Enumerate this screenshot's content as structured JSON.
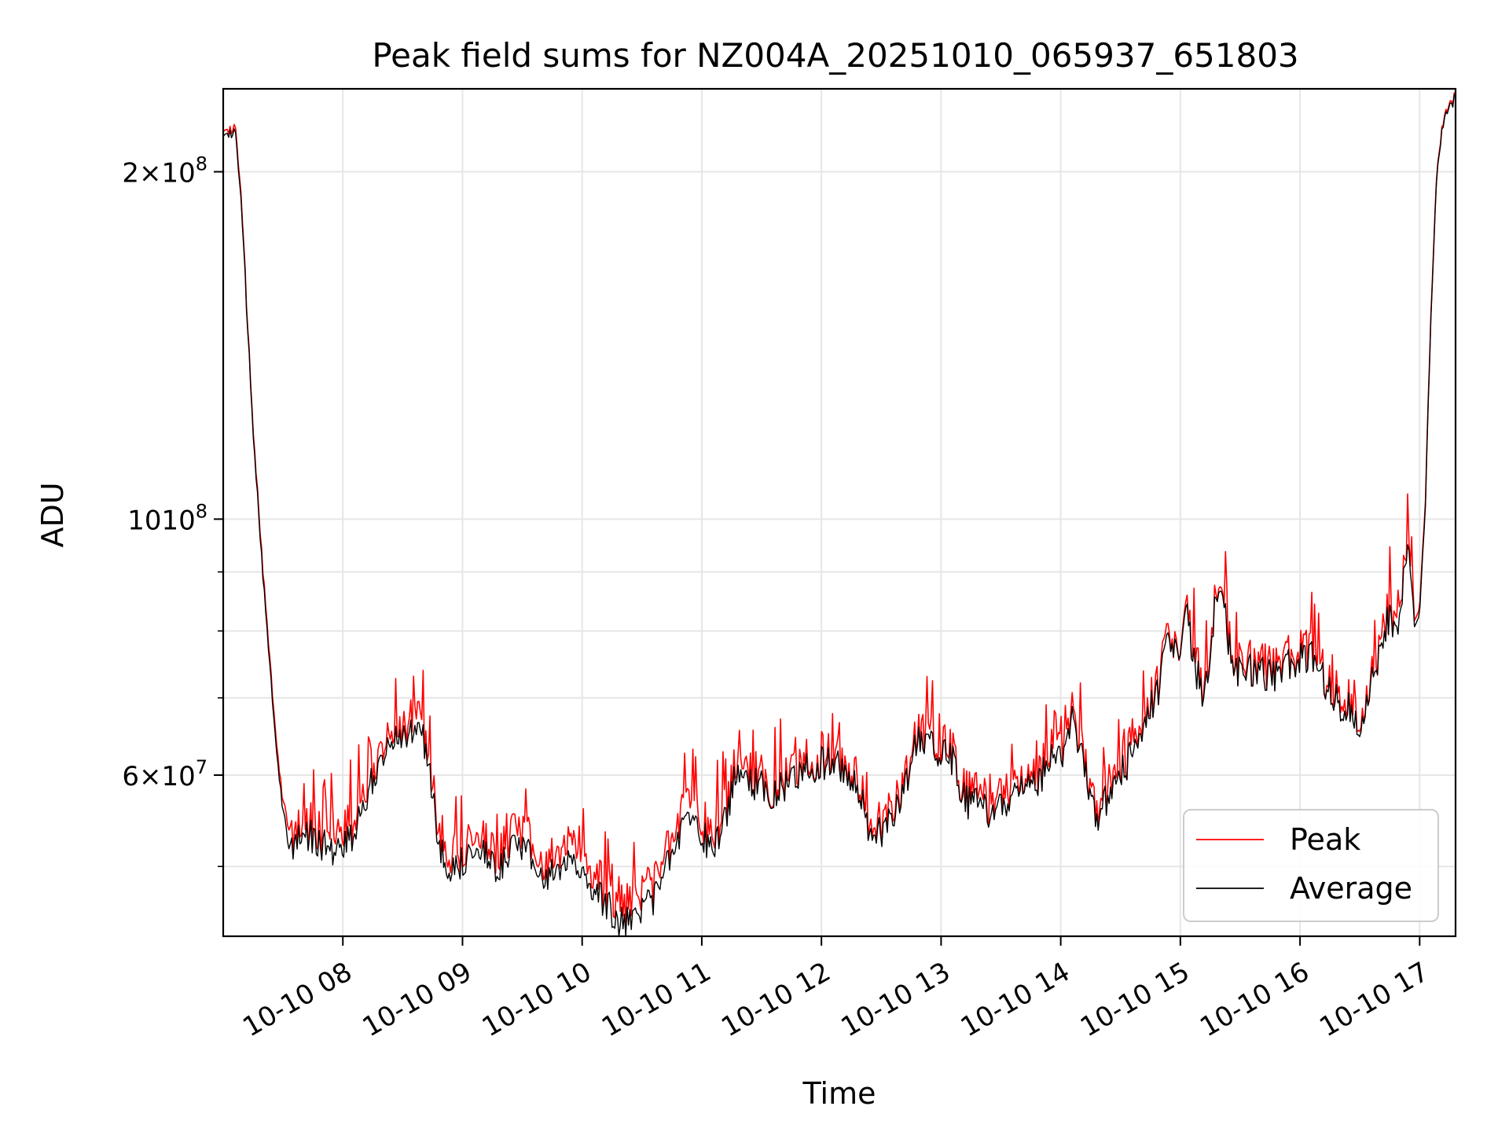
{
  "chart_data": {
    "type": "line",
    "title": "Peak field sums for NZ004A_20251010_065937_651803",
    "xlabel": "Time",
    "ylabel": "ADU",
    "yscale": "log",
    "ylim": [
      43500000,
      236000000
    ],
    "xlim_hours": [
      7.0,
      17.3
    ],
    "x_ticks": [
      {
        "value": 8,
        "label": "10-10 08"
      },
      {
        "value": 9,
        "label": "10-10 09"
      },
      {
        "value": 10,
        "label": "10-10 10"
      },
      {
        "value": 11,
        "label": "10-10 11"
      },
      {
        "value": 12,
        "label": "10-10 12"
      },
      {
        "value": 13,
        "label": "10-10 13"
      },
      {
        "value": 14,
        "label": "10-10 14"
      },
      {
        "value": 15,
        "label": "10-10 15"
      },
      {
        "value": 16,
        "label": "10-10 16"
      },
      {
        "value": 17,
        "label": "10-10 17"
      }
    ],
    "y_major_ticks": [
      {
        "value": 200000000,
        "mantissa": "2",
        "exp": "8",
        "times": true
      },
      {
        "value": 100000000,
        "mantissa": "10",
        "exp": "8",
        "times": false
      },
      {
        "value": 60000000,
        "mantissa": "6",
        "exp": "7",
        "times": true
      }
    ],
    "y_minor_ticks": [
      50000000,
      70000000,
      80000000,
      90000000
    ],
    "grid": true,
    "legend": {
      "position": "lower-right"
    },
    "series": [
      {
        "name": "Peak",
        "color": "#ff0000",
        "x": [
          7.0,
          7.05,
          7.1,
          7.15,
          7.2,
          7.25,
          7.3,
          7.35,
          7.4,
          7.45,
          7.5,
          7.55,
          7.6,
          7.7,
          7.8,
          7.9,
          8.0,
          8.1,
          8.2,
          8.3,
          8.4,
          8.5,
          8.6,
          8.7,
          8.8,
          8.85,
          8.9,
          9.0,
          9.1,
          9.2,
          9.3,
          9.4,
          9.5,
          9.6,
          9.7,
          9.8,
          9.9,
          10.0,
          10.1,
          10.2,
          10.3,
          10.4,
          10.5,
          10.6,
          10.7,
          10.8,
          10.9,
          11.0,
          11.1,
          11.2,
          11.3,
          11.4,
          11.5,
          11.6,
          11.7,
          11.8,
          11.9,
          12.0,
          12.1,
          12.2,
          12.3,
          12.4,
          12.5,
          12.6,
          12.7,
          12.8,
          12.9,
          13.0,
          13.1,
          13.2,
          13.3,
          13.4,
          13.5,
          13.6,
          13.7,
          13.8,
          13.9,
          14.0,
          14.1,
          14.2,
          14.3,
          14.4,
          14.5,
          14.6,
          14.7,
          14.8,
          14.9,
          15.0,
          15.05,
          15.1,
          15.2,
          15.25,
          15.3,
          15.35,
          15.4,
          15.5,
          15.6,
          15.7,
          15.8,
          15.9,
          16.0,
          16.1,
          16.2,
          16.3,
          16.35,
          16.4,
          16.5,
          16.6,
          16.65,
          16.7,
          16.75,
          16.8,
          16.85,
          16.9,
          16.95,
          17.0,
          17.05,
          17.1,
          17.15,
          17.2,
          17.25,
          17.3
        ],
        "values": [
          216000000,
          217000000,
          219000000,
          190000000,
          150000000,
          120000000,
          100000000,
          85000000,
          73000000,
          63000000,
          57000000,
          54000000,
          53500000,
          54500000,
          54000000,
          53500000,
          53000000,
          55000000,
          59000000,
          63000000,
          66000000,
          67000000,
          68500000,
          65000000,
          54000000,
          52000000,
          51500000,
          52000000,
          54500000,
          53000000,
          51000000,
          53000000,
          54500000,
          52000000,
          50500000,
          51000000,
          52500000,
          50000000,
          49000000,
          48000000,
          46500000,
          46000000,
          47000000,
          48500000,
          51500000,
          55500000,
          56500000,
          54500000,
          53500000,
          57000000,
          61500000,
          61000000,
          59500000,
          59000000,
          60000000,
          61000000,
          62000000,
          62500000,
          62500000,
          62000000,
          60000000,
          55000000,
          54500000,
          56000000,
          60000000,
          65500000,
          65000000,
          63500000,
          63000000,
          58000000,
          57500000,
          56500000,
          57000000,
          58500000,
          61000000,
          60000000,
          62500000,
          63000000,
          68000000,
          62000000,
          55500000,
          59000000,
          61500000,
          63500000,
          68500000,
          71000000,
          80000000,
          79000000,
          85500000,
          77000000,
          71000000,
          76500000,
          87500000,
          88500000,
          79000000,
          74000000,
          75000000,
          74500000,
          74000000,
          75500000,
          76500000,
          77500000,
          73500000,
          71000000,
          68000000,
          70000000,
          66500000,
          74000000,
          77000000,
          80500000,
          83500000,
          80000000,
          85000000,
          97000000,
          82000000,
          84000000,
          105000000,
          155000000,
          205000000,
          222000000,
          228000000,
          233000000
        ]
      },
      {
        "name": "Average",
        "color": "#000000",
        "x": [
          7.0,
          7.05,
          7.1,
          7.15,
          7.2,
          7.25,
          7.3,
          7.35,
          7.4,
          7.45,
          7.5,
          7.55,
          7.6,
          7.7,
          7.8,
          7.9,
          8.0,
          8.1,
          8.2,
          8.3,
          8.4,
          8.5,
          8.6,
          8.7,
          8.8,
          8.85,
          8.9,
          9.0,
          9.1,
          9.2,
          9.3,
          9.4,
          9.5,
          9.6,
          9.7,
          9.8,
          9.9,
          10.0,
          10.1,
          10.2,
          10.3,
          10.4,
          10.5,
          10.6,
          10.7,
          10.8,
          10.9,
          11.0,
          11.1,
          11.2,
          11.3,
          11.4,
          11.5,
          11.6,
          11.7,
          11.8,
          11.9,
          12.0,
          12.1,
          12.2,
          12.3,
          12.4,
          12.5,
          12.6,
          12.7,
          12.8,
          12.9,
          13.0,
          13.1,
          13.2,
          13.3,
          13.4,
          13.5,
          13.6,
          13.7,
          13.8,
          13.9,
          14.0,
          14.1,
          14.2,
          14.3,
          14.4,
          14.5,
          14.6,
          14.7,
          14.8,
          14.9,
          15.0,
          15.05,
          15.1,
          15.2,
          15.25,
          15.3,
          15.35,
          15.4,
          15.5,
          15.6,
          15.7,
          15.8,
          15.9,
          16.0,
          16.1,
          16.2,
          16.3,
          16.35,
          16.4,
          16.5,
          16.6,
          16.65,
          16.7,
          16.75,
          16.8,
          16.85,
          16.9,
          16.95,
          17.0,
          17.05,
          17.1,
          17.15,
          17.2,
          17.25,
          17.3
        ],
        "values": [
          214000000,
          215500000,
          217000000,
          188000000,
          149000000,
          119000000,
          99000000,
          84000000,
          72000000,
          62000000,
          56000000,
          52000000,
          52500000,
          53500000,
          52500000,
          52000000,
          51500000,
          53500000,
          57500000,
          61500000,
          64500000,
          65500000,
          66000000,
          63500000,
          52500000,
          50000000,
          50000000,
          50500000,
          52500000,
          51500000,
          49500000,
          51500000,
          52500000,
          50500000,
          49000000,
          49500000,
          50500000,
          48500000,
          47500000,
          46500000,
          45000000,
          44500000,
          45500000,
          47000000,
          50000000,
          53500000,
          54500000,
          53000000,
          52000000,
          55500000,
          60500000,
          59500000,
          58500000,
          58000000,
          59000000,
          60000000,
          61000000,
          61500000,
          61500000,
          61000000,
          59000000,
          54000000,
          53500000,
          55000000,
          59000000,
          64500000,
          64000000,
          62500000,
          62000000,
          57000000,
          56500000,
          55500000,
          56000000,
          57500000,
          60000000,
          59000000,
          61500000,
          62000000,
          67000000,
          61000000,
          54500000,
          58000000,
          60500000,
          62500000,
          67500000,
          70000000,
          79000000,
          78000000,
          84500000,
          76000000,
          70000000,
          75500000,
          86500000,
          87500000,
          78000000,
          73000000,
          74000000,
          73500000,
          73000000,
          74500000,
          75500000,
          76500000,
          72500000,
          70000000,
          66500000,
          69000000,
          65500000,
          73000000,
          76000000,
          79500000,
          82500000,
          79000000,
          84000000,
          96000000,
          81000000,
          83000000,
          104000000,
          154000000,
          204000000,
          221000000,
          227000000,
          232000000
        ]
      }
    ]
  }
}
